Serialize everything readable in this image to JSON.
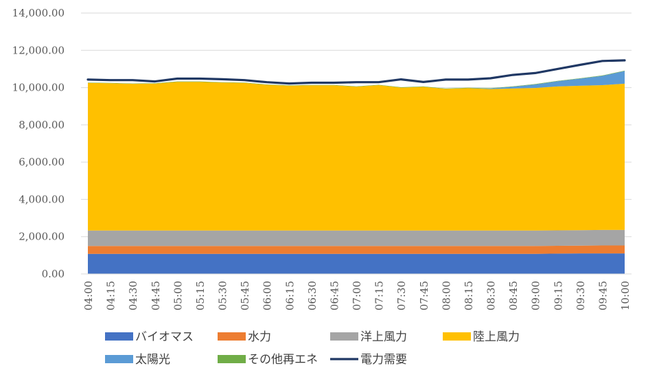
{
  "chart_data": {
    "type": "area",
    "stacked": true,
    "x": [
      "04:00",
      "04:15",
      "04:30",
      "04:45",
      "05:00",
      "05:15",
      "05:30",
      "05:45",
      "06:00",
      "06:15",
      "06:30",
      "06:45",
      "07:00",
      "07:15",
      "07:30",
      "07:45",
      "08:00",
      "08:15",
      "08:30",
      "08:45",
      "09:00",
      "09:15",
      "09:30",
      "09:45",
      "10:00"
    ],
    "ylim": [
      0,
      14000
    ],
    "yticks": [
      0,
      2000,
      4000,
      6000,
      8000,
      10000,
      12000,
      14000
    ],
    "ytick_labels": [
      "0.00",
      "2,000.00",
      "4,000.00",
      "6,000.00",
      "8,000.00",
      "10,000.00",
      "12,000.00",
      "14,000.00"
    ],
    "grid": true,
    "legend_position": "bottom",
    "series": [
      {
        "name": "バイオマス",
        "color": "#4472C4",
        "kind": "area",
        "values": [
          1080,
          1080,
          1080,
          1080,
          1080,
          1080,
          1080,
          1080,
          1080,
          1080,
          1080,
          1080,
          1080,
          1080,
          1080,
          1080,
          1080,
          1080,
          1080,
          1080,
          1080,
          1090,
          1100,
          1100,
          1100
        ]
      },
      {
        "name": "水力",
        "color": "#ED7D31",
        "kind": "area",
        "values": [
          420,
          420,
          420,
          420,
          420,
          420,
          420,
          420,
          420,
          420,
          420,
          420,
          420,
          420,
          420,
          420,
          420,
          420,
          420,
          420,
          420,
          420,
          420,
          430,
          430
        ]
      },
      {
        "name": "洋上風力",
        "color": "#A5A5A5",
        "kind": "area",
        "values": [
          830,
          830,
          830,
          830,
          830,
          830,
          830,
          830,
          830,
          830,
          830,
          830,
          830,
          830,
          830,
          830,
          830,
          830,
          830,
          830,
          830,
          830,
          830,
          830,
          830
        ]
      },
      {
        "name": "陸上風力",
        "color": "#FFC000",
        "kind": "area",
        "values": [
          7920,
          7900,
          7870,
          7880,
          7980,
          7980,
          7940,
          7920,
          7820,
          7770,
          7790,
          7790,
          7720,
          7800,
          7670,
          7710,
          7600,
          7640,
          7590,
          7620,
          7650,
          7720,
          7750,
          7770,
          7850
        ]
      },
      {
        "name": "太陽光",
        "color": "#5B9BD5",
        "kind": "area",
        "values": [
          0,
          0,
          0,
          0,
          0,
          0,
          0,
          0,
          0,
          0,
          0,
          0,
          0,
          0,
          0,
          0,
          0,
          0,
          30,
          100,
          190,
          280,
          380,
          500,
          680
        ]
      },
      {
        "name": "その他再エネ",
        "color": "#70AD47",
        "kind": "area",
        "values": [
          20,
          20,
          20,
          20,
          20,
          20,
          20,
          20,
          20,
          20,
          20,
          20,
          20,
          20,
          20,
          20,
          20,
          20,
          20,
          20,
          20,
          20,
          20,
          20,
          20
        ]
      },
      {
        "name": "電力需要",
        "color": "#203864",
        "kind": "line",
        "values": [
          10430,
          10400,
          10400,
          10330,
          10480,
          10480,
          10450,
          10400,
          10290,
          10220,
          10260,
          10260,
          10290,
          10290,
          10440,
          10300,
          10430,
          10430,
          10500,
          10680,
          10780,
          11000,
          11220,
          11430,
          11460
        ]
      }
    ]
  }
}
